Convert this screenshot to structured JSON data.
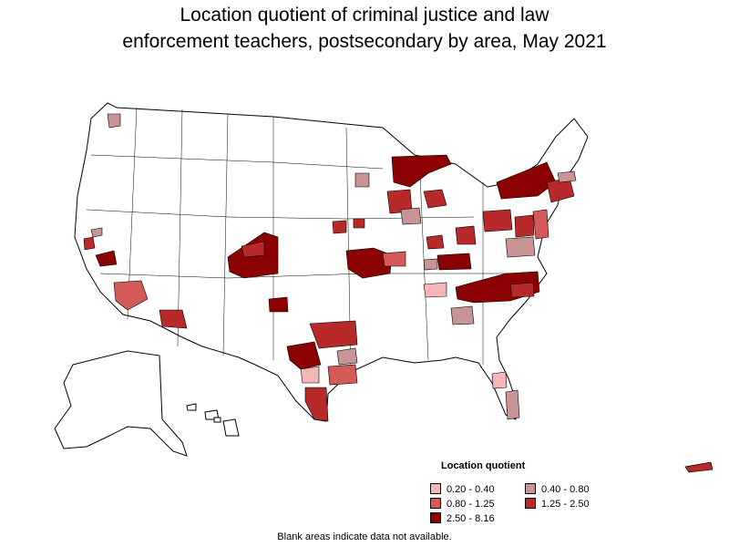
{
  "title": {
    "line1": "Location quotient of criminal justice and law",
    "line2": "enforcement teachers, postsecondary by area, May 2021"
  },
  "legend": {
    "title": "Location quotient",
    "items": [
      {
        "label": "0.20 - 0.40",
        "color": "#f4b6b6"
      },
      {
        "label": "0.40 - 0.80",
        "color": "#c99494"
      },
      {
        "label": "0.80 - 1.25",
        "color": "#d45a5a"
      },
      {
        "label": "1.25 - 2.50",
        "color": "#b82a2a"
      },
      {
        "label": "2.50 - 8.16",
        "color": "#8b0000"
      }
    ]
  },
  "footnote": "Blank areas indicate data not available.",
  "colors": {
    "blank": "#ffffff",
    "border": "#000000"
  }
}
